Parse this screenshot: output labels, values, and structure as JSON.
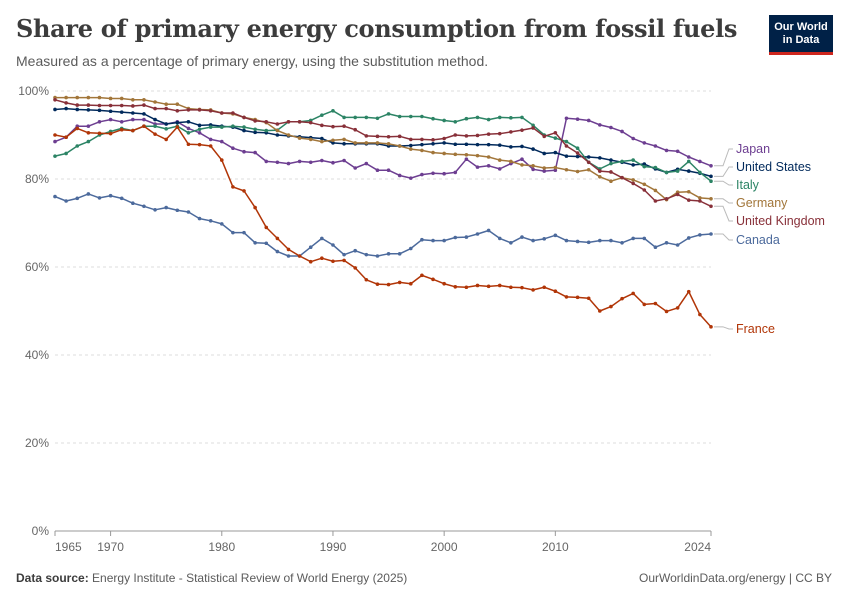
{
  "header": {
    "title": "Share of primary energy consumption from fossil fuels",
    "subtitle": "Measured as a percentage of primary energy, using the substitution method.",
    "logo_line1": "Our World",
    "logo_line2": "in Data"
  },
  "footer": {
    "source_label": "Data source:",
    "source_text": "Energy Institute - Statistical Review of World Energy (2025)",
    "right_text": "OurWorldinData.org/energy | CC BY"
  },
  "colors": {
    "Japan": "#6d3e91",
    "United States": "#00295b",
    "Italy": "#2c8465",
    "Germany": "#a2763a",
    "United Kingdom": "#883039",
    "Canada": "#4c6a9c",
    "France": "#b13507"
  },
  "chart_data": {
    "type": "line",
    "title": "Share of primary energy consumption from fossil fuels",
    "subtitle": "Measured as a percentage of primary energy, using the substitution method.",
    "xlabel": "",
    "ylabel": "",
    "xlim": [
      1965,
      2024
    ],
    "ylim": [
      0,
      100
    ],
    "yticks": [
      0,
      20,
      40,
      60,
      80,
      100
    ],
    "ytick_labels": [
      "0%",
      "20%",
      "40%",
      "60%",
      "80%",
      "100%"
    ],
    "xticks": [
      1965,
      1970,
      1980,
      1990,
      2000,
      2010,
      2024
    ],
    "xtick_labels": [
      "1965",
      "1970",
      "1980",
      "1990",
      "2000",
      "2010",
      "2024"
    ],
    "grid": "horizontal dashed",
    "legend": "right, direct labels at line ends",
    "x": [
      1965,
      1966,
      1967,
      1968,
      1969,
      1970,
      1971,
      1972,
      1973,
      1974,
      1975,
      1976,
      1977,
      1978,
      1979,
      1980,
      1981,
      1982,
      1983,
      1984,
      1985,
      1986,
      1987,
      1988,
      1989,
      1990,
      1991,
      1992,
      1993,
      1994,
      1995,
      1996,
      1997,
      1998,
      1999,
      2000,
      2001,
      2002,
      2003,
      2004,
      2005,
      2006,
      2007,
      2008,
      2009,
      2010,
      2011,
      2012,
      2013,
      2014,
      2015,
      2016,
      2017,
      2018,
      2019,
      2020,
      2021,
      2022,
      2023,
      2024
    ],
    "series": [
      {
        "name": "Japan",
        "values": [
          88.5,
          89.5,
          92,
          92,
          93,
          93.5,
          93,
          93.5,
          93.5,
          92.5,
          92.5,
          93,
          91.5,
          90.5,
          89,
          88.5,
          87,
          86.2,
          86,
          84,
          83.8,
          83.5,
          84,
          83.8,
          84.2,
          83.7,
          84.2,
          82.5,
          83.5,
          82,
          82,
          80.8,
          80.2,
          81,
          81.3,
          81.2,
          81.5,
          84.5,
          82.7,
          83,
          82.3,
          83.5,
          84.5,
          82.2,
          81.8,
          82,
          93.8,
          93.6,
          93.3,
          92.3,
          91.7,
          90.8,
          89.2,
          88.2,
          87.5,
          86.5,
          86.3,
          85,
          84,
          83
        ]
      },
      {
        "name": "United States",
        "values": [
          95.8,
          96,
          95.8,
          95.7,
          95.6,
          95.4,
          95.2,
          95,
          94.8,
          93.5,
          92.5,
          92.8,
          93,
          92.2,
          92.3,
          92,
          91.8,
          91,
          90.6,
          90.5,
          90,
          89.8,
          89.6,
          89.4,
          89.2,
          88.2,
          88,
          88,
          88,
          88,
          87.5,
          87.5,
          87.6,
          87.8,
          88,
          88.2,
          87.9,
          87.9,
          87.8,
          87.8,
          87.7,
          87.3,
          87.4,
          86.8,
          85.8,
          86,
          85.2,
          85.1,
          85,
          84.8,
          84.3,
          83.8,
          83.2,
          83.4,
          82.3,
          81.5,
          82.2,
          81.8,
          81.3,
          80.6
        ]
      },
      {
        "name": "Italy",
        "values": [
          85.2,
          85.8,
          87.5,
          88.5,
          90,
          90.8,
          91.5,
          91,
          92,
          92,
          91.4,
          92,
          90.5,
          91.3,
          91.8,
          91.8,
          92,
          91.8,
          91.3,
          91,
          91.1,
          93,
          93,
          93.3,
          94.5,
          95.5,
          94,
          94,
          94,
          93.8,
          94.8,
          94.2,
          94.2,
          94.2,
          93.7,
          93.3,
          93,
          93.7,
          94,
          93.5,
          94,
          93.9,
          94,
          92.2,
          90,
          89.3,
          88.5,
          87,
          83.8,
          82.3,
          83.5,
          84,
          84.3,
          82.8,
          82.6,
          81.5,
          81.8,
          84,
          81.5,
          79.5
        ]
      },
      {
        "name": "Germany",
        "values": [
          98.5,
          98.5,
          98.5,
          98.5,
          98.5,
          98.3,
          98.3,
          98,
          98,
          97.5,
          97,
          97,
          96,
          95.8,
          95.7,
          95,
          94.8,
          94,
          93.5,
          92.8,
          91,
          90,
          89.3,
          89,
          88.5,
          88.8,
          89,
          88.2,
          88.2,
          88.2,
          88,
          87.5,
          86.8,
          86.5,
          86,
          85.8,
          85.6,
          85.5,
          85.3,
          85,
          84.3,
          84,
          83.2,
          83,
          82.5,
          82.6,
          82.1,
          81.7,
          82.1,
          80.5,
          79.5,
          80.3,
          79.8,
          78.8,
          77.4,
          75.3,
          77,
          77.1,
          75.7,
          75.5
        ]
      },
      {
        "name": "United Kingdom",
        "values": [
          98,
          97.3,
          96.8,
          96.8,
          96.7,
          96.7,
          96.7,
          96.6,
          96.8,
          96,
          96,
          95.5,
          95.7,
          95.7,
          95.5,
          95,
          95,
          94,
          93.2,
          93,
          92.5,
          93,
          93,
          92.8,
          92.2,
          91.9,
          92,
          91.2,
          89.8,
          89.7,
          89.6,
          89.7,
          89,
          89,
          88.9,
          89.2,
          90,
          89.8,
          89.9,
          90.2,
          90.3,
          90.7,
          91.1,
          91.6,
          89.7,
          90.5,
          87.5,
          85.9,
          83.8,
          81.8,
          81.6,
          80.3,
          79,
          77.5,
          75,
          75.5,
          76.5,
          75.2,
          75,
          73.8
        ]
      },
      {
        "name": "Canada",
        "values": [
          76,
          75,
          75.6,
          76.6,
          75.7,
          76.2,
          75.6,
          74.5,
          73.8,
          73,
          73.5,
          72.9,
          72.5,
          71,
          70.5,
          69.8,
          67.8,
          67.8,
          65.5,
          65.4,
          63.5,
          62.5,
          62.5,
          64.5,
          66.5,
          65,
          62.8,
          63.7,
          62.8,
          62.5,
          63,
          63,
          64.2,
          66.2,
          66,
          66,
          66.7,
          66.8,
          67.5,
          68.3,
          66.5,
          65.5,
          66.8,
          66,
          66.4,
          67.2,
          66,
          65.8,
          65.6,
          66,
          66,
          65.5,
          66.5,
          66.5,
          64.5,
          65.5,
          65,
          66.6,
          67.3,
          67.5
        ]
      },
      {
        "name": "France",
        "values": [
          90,
          89.5,
          91.5,
          90.5,
          90.4,
          90.3,
          91.2,
          91,
          92,
          90.2,
          89,
          91.8,
          87.9,
          87.8,
          87.5,
          84.3,
          78.2,
          77.3,
          73.5,
          69,
          66.5,
          64,
          62.5,
          61.2,
          62,
          61.3,
          61.5,
          59.8,
          57.1,
          56.1,
          56,
          56.5,
          56.2,
          58.1,
          57.2,
          56.2,
          55.5,
          55.4,
          55.8,
          55.6,
          55.8,
          55.4,
          55.3,
          54.8,
          55.4,
          54.5,
          53.2,
          53.1,
          52.9,
          50,
          51,
          52.8,
          54,
          51.5,
          51.7,
          49.9,
          50.7,
          54.4,
          49.2,
          46.4
        ]
      }
    ]
  }
}
